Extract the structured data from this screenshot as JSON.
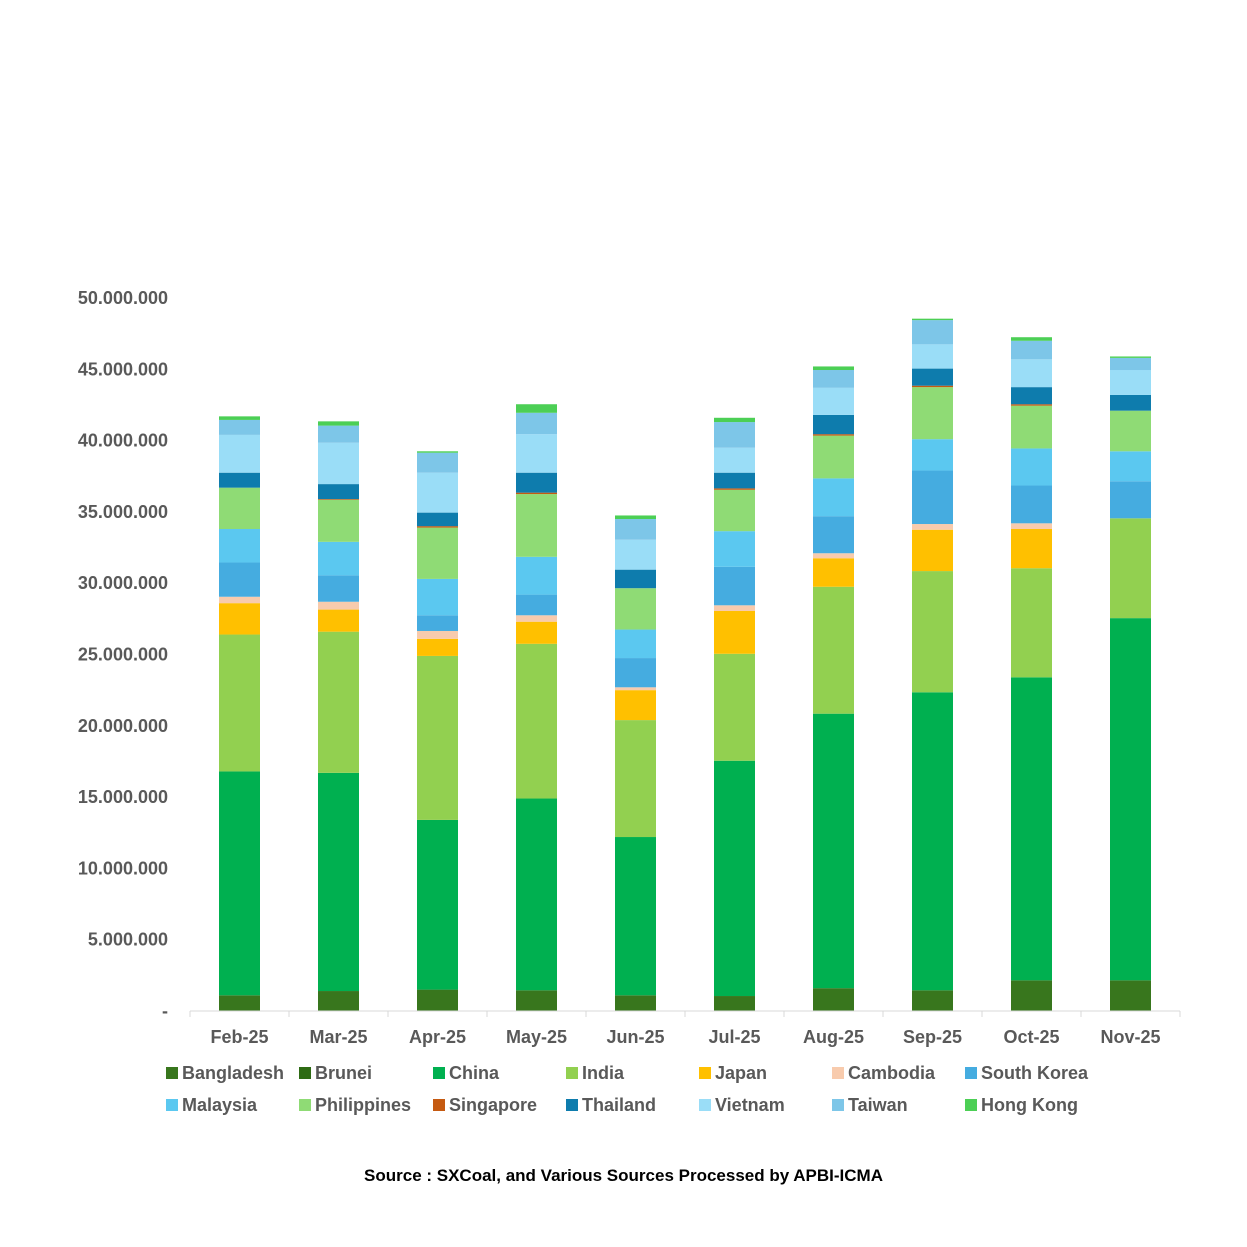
{
  "chart_data": {
    "type": "bar",
    "stacked": true,
    "categories": [
      "Feb-25",
      "Mar-25",
      "Apr-25",
      "May-25",
      "Jun-25",
      "Jul-25",
      "Aug-25",
      "Sep-25",
      "Oct-25",
      "Nov-25"
    ],
    "y_ticks": [
      "-",
      "5.000.000",
      "10.000.000",
      "15.000.000",
      "20.000.000",
      "25.000.000",
      "30.000.000",
      "35.000.000",
      "40.000.000",
      "45.000.000",
      "50.000.000"
    ],
    "ylim": [
      0,
      50000000
    ],
    "legend_position": "bottom",
    "series": [
      {
        "name": "Bangladesh",
        "color": "#38761D",
        "values": [
          1100000,
          1400000,
          1500000,
          1450000,
          1100000,
          1050000,
          1600000,
          1450000,
          2150000,
          2150000
        ]
      },
      {
        "name": "Brunei",
        "color": "#2E6B14",
        "values": [
          0,
          0,
          0,
          0,
          0,
          0,
          0,
          0,
          0,
          0
        ]
      },
      {
        "name": "China",
        "color": "#00B050",
        "values": [
          15700000,
          15300000,
          11900000,
          13450000,
          11100000,
          16500000,
          19250000,
          20900000,
          21250000,
          25400000
        ]
      },
      {
        "name": "India",
        "color": "#92D050",
        "values": [
          9600000,
          9900000,
          11500000,
          10850000,
          8200000,
          7500000,
          8900000,
          8500000,
          7650000,
          7000000
        ]
      },
      {
        "name": "Japan",
        "color": "#FFC000",
        "values": [
          2200000,
          1550000,
          1200000,
          1550000,
          2100000,
          3000000,
          2000000,
          2900000,
          2750000,
          0
        ]
      },
      {
        "name": "Cambodia",
        "color": "#F8CBAD",
        "values": [
          450000,
          550000,
          550000,
          450000,
          200000,
          400000,
          350000,
          400000,
          400000,
          0
        ]
      },
      {
        "name": "South Korea",
        "color": "#45ACE0",
        "values": [
          2400000,
          1850000,
          1100000,
          1450000,
          2050000,
          2700000,
          2600000,
          3750000,
          2650000,
          2600000
        ]
      },
      {
        "name": "Malaysia",
        "color": "#5BC8F0",
        "values": [
          2350000,
          2350000,
          2550000,
          2650000,
          2000000,
          2500000,
          2650000,
          2200000,
          2600000,
          2100000
        ]
      },
      {
        "name": "Philippines",
        "color": "#8FDB75",
        "values": [
          2900000,
          2950000,
          3600000,
          4400000,
          2900000,
          2900000,
          3000000,
          3650000,
          3000000,
          2850000
        ]
      },
      {
        "name": "Singapore",
        "color": "#C55A11",
        "values": [
          0,
          50000,
          100000,
          100000,
          0,
          100000,
          100000,
          100000,
          100000,
          0
        ]
      },
      {
        "name": "Thailand",
        "color": "#0E7CAD",
        "values": [
          1050000,
          1050000,
          950000,
          1400000,
          1300000,
          1100000,
          1350000,
          1200000,
          1200000,
          1100000
        ]
      },
      {
        "name": "Vietnam",
        "color": "#9ADDF7",
        "values": [
          2650000,
          2900000,
          2800000,
          2700000,
          2100000,
          1750000,
          1900000,
          1700000,
          1950000,
          1750000
        ]
      },
      {
        "name": "Taiwan",
        "color": "#7DC6E8",
        "values": [
          1050000,
          1200000,
          1400000,
          1500000,
          1450000,
          1800000,
          1250000,
          1700000,
          1300000,
          850000
        ]
      },
      {
        "name": "Hong Kong",
        "color": "#4CCF55",
        "values": [
          250000,
          300000,
          100000,
          600000,
          250000,
          300000,
          250000,
          100000,
          250000,
          100000
        ]
      }
    ]
  },
  "source_text": "Source : SXCoal, and Various Sources Processed by APBI-ICMA"
}
